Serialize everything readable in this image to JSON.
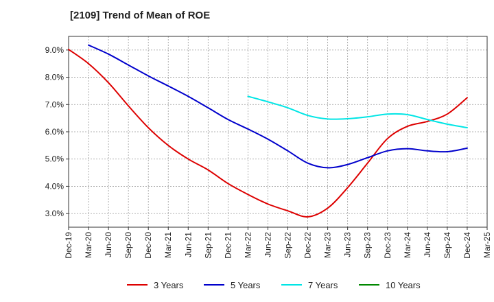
{
  "chart_data": {
    "type": "line",
    "title": "[2109]  Trend of Mean of ROE",
    "x": [
      "Dec-19",
      "Mar-20",
      "Jun-20",
      "Sep-20",
      "Dec-20",
      "Mar-21",
      "Jun-21",
      "Sep-21",
      "Dec-21",
      "Mar-22",
      "Jun-22",
      "Sep-22",
      "Dec-22",
      "Mar-23",
      "Jun-23",
      "Sep-23",
      "Dec-23",
      "Mar-24",
      "Jun-24",
      "Sep-24",
      "Dec-24",
      "Mar-25"
    ],
    "ylim": [
      2.5,
      9.5
    ],
    "yticks": [
      3.0,
      4.0,
      5.0,
      6.0,
      7.0,
      8.0,
      9.0
    ],
    "ytick_labels": [
      "3.0%",
      "4.0%",
      "5.0%",
      "6.0%",
      "7.0%",
      "8.0%",
      "9.0%"
    ],
    "xlabel": "",
    "ylabel": "",
    "grid": true,
    "legend_position": "bottom",
    "series": [
      {
        "name": "3 Years",
        "color": "#dd0000",
        "values": [
          9.02,
          8.5,
          7.8,
          6.95,
          6.15,
          5.5,
          5.0,
          4.6,
          4.1,
          3.7,
          3.35,
          3.1,
          2.88,
          3.2,
          3.95,
          4.85,
          5.75,
          6.2,
          6.38,
          6.65,
          7.25,
          null
        ]
      },
      {
        "name": "5 Years",
        "color": "#0000cc",
        "values": [
          null,
          9.18,
          8.85,
          8.45,
          8.05,
          7.68,
          7.3,
          6.88,
          6.45,
          6.1,
          5.73,
          5.3,
          4.85,
          4.68,
          4.8,
          5.05,
          5.3,
          5.38,
          5.3,
          5.27,
          5.4,
          null
        ]
      },
      {
        "name": "7 Years",
        "color": "#00e5e5",
        "values": [
          null,
          null,
          null,
          null,
          null,
          null,
          null,
          null,
          null,
          7.3,
          7.1,
          6.88,
          6.6,
          6.47,
          6.48,
          6.55,
          6.65,
          6.63,
          6.45,
          6.28,
          6.15,
          null
        ]
      },
      {
        "name": "10 Years",
        "color": "#008800",
        "values": [
          null,
          null,
          null,
          null,
          null,
          null,
          null,
          null,
          null,
          null,
          null,
          null,
          null,
          null,
          null,
          null,
          null,
          null,
          null,
          null,
          null,
          null
        ]
      }
    ]
  }
}
